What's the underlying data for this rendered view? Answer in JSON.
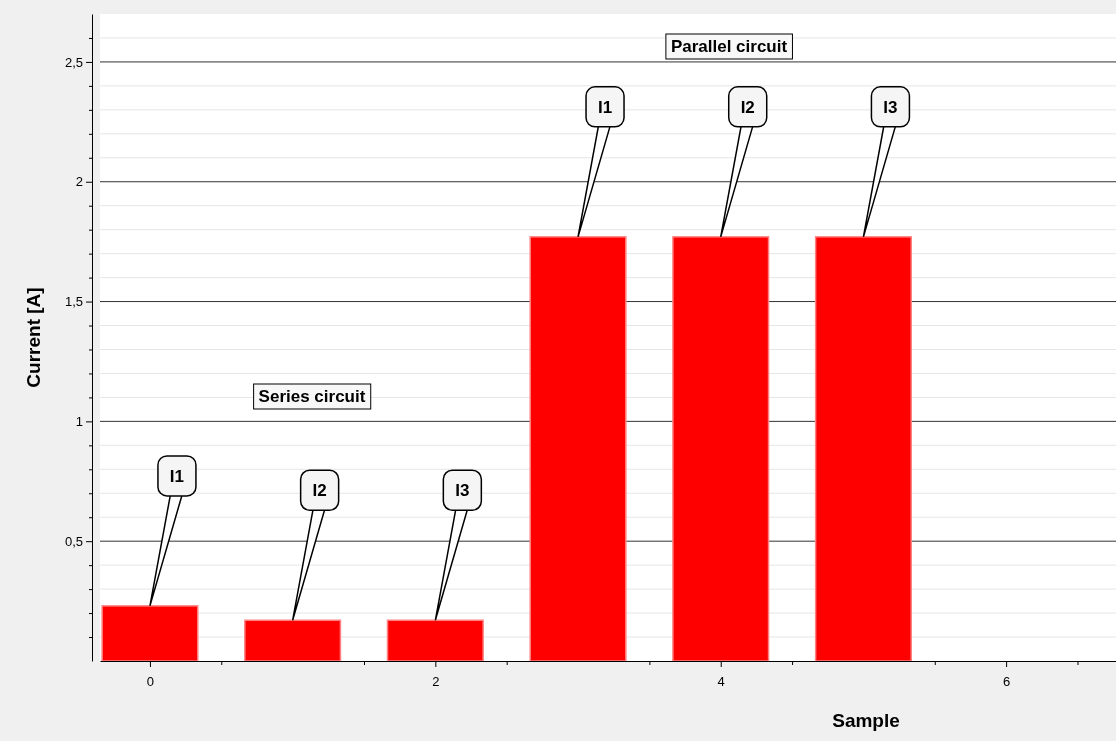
{
  "chart_data": {
    "type": "bar",
    "xlabel": "Sample",
    "ylabel": "Current [A]",
    "x": [
      0,
      1,
      2,
      3,
      4,
      5
    ],
    "values": [
      0.23,
      0.17,
      0.17,
      1.77,
      1.77,
      1.77
    ],
    "color": "#ff0000",
    "xlim": [
      -0.35,
      6.77
    ],
    "xticks": [
      0,
      {
        "value": 0.5,
        "label": null
      },
      {
        "value": 1.5,
        "label": null
      },
      2,
      {
        "value": 2.5,
        "label": null
      },
      {
        "value": 3.5,
        "label": null
      },
      4,
      {
        "value": 4.5,
        "label": null
      },
      {
        "value": 5.5,
        "label": null
      },
      6,
      {
        "value": 6.5,
        "label": null
      }
    ],
    "ylim": [
      0,
      2.7
    ],
    "yticks": [
      {
        "value": 0.1,
        "label": null
      },
      {
        "value": 0.2,
        "label": null
      },
      {
        "value": 0.3,
        "label": null
      },
      {
        "value": 0.4,
        "label": null
      },
      {
        "value": 0.5,
        "label": "0,5"
      },
      {
        "value": 0.6,
        "label": null
      },
      {
        "value": 0.7,
        "label": null
      },
      {
        "value": 0.8,
        "label": null
      },
      {
        "value": 0.9,
        "label": null
      },
      1,
      {
        "value": 1.1,
        "label": null
      },
      {
        "value": 1.2,
        "label": null
      },
      {
        "value": 1.3,
        "label": null
      },
      {
        "value": 1.4,
        "label": null
      },
      {
        "value": 1.5,
        "label": "1,5"
      },
      {
        "value": 1.6,
        "label": null
      },
      {
        "value": 1.7,
        "label": null
      },
      {
        "value": 1.8,
        "label": null
      },
      {
        "value": 1.9,
        "label": null
      },
      2,
      {
        "value": 2.1,
        "label": null
      },
      {
        "value": 2.2,
        "label": null
      },
      {
        "value": 2.3,
        "label": null
      },
      {
        "value": 2.4,
        "label": null
      },
      {
        "value": 2.5,
        "label": "2,5"
      },
      {
        "value": 2.6,
        "label": null
      }
    ],
    "grid": "y",
    "annotations": [
      "Series circuit",
      "Parallel circuit",
      {
        "text": "I1",
        "x": 0,
        "y": 0.23
      },
      {
        "text": "I2",
        "x": 1,
        "y": 0.17
      },
      {
        "text": "I3",
        "x": 2,
        "y": 0.17
      },
      {
        "text": "I1",
        "x": 3,
        "y": 1.77
      },
      {
        "text": "I2",
        "x": 4,
        "y": 1.77
      },
      {
        "text": "I3",
        "x": 5,
        "y": 1.77
      }
    ]
  }
}
